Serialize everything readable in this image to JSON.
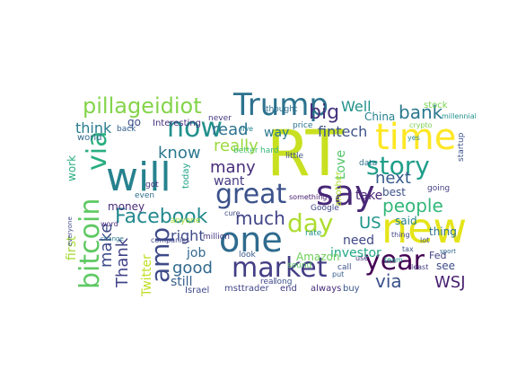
{
  "wordcloud": {
    "words": [
      {
        "text": "RT",
        "color": "#c8e020"
      },
      {
        "text": "new",
        "color": "#e5e419"
      },
      {
        "text": "will",
        "color": "#26828e"
      },
      {
        "text": "one",
        "color": "#2f6b8e"
      },
      {
        "text": "market",
        "color": "#433e85"
      },
      {
        "text": "great",
        "color": "#3b528b"
      },
      {
        "text": "say",
        "color": "#482878"
      },
      {
        "text": "Trump",
        "color": "#2c728e"
      },
      {
        "text": "time",
        "color": "#fde725"
      },
      {
        "text": "bitcoin",
        "color": "#5ec962"
      },
      {
        "text": "now",
        "color": "#21918c"
      },
      {
        "text": "amp",
        "color": "#3e4a89"
      },
      {
        "text": "story",
        "color": "#1f9e89"
      },
      {
        "text": "year",
        "color": "#440154"
      },
      {
        "text": "day",
        "color": "#addc30"
      },
      {
        "text": "via",
        "color": "#28ae80"
      },
      {
        "text": "via",
        "color": "#3b528b"
      },
      {
        "text": "pillageidiot",
        "color": "#84d44b"
      },
      {
        "text": "Facebook",
        "color": "#23898e"
      },
      {
        "text": "people",
        "color": "#35b779"
      },
      {
        "text": "big",
        "color": "#46327e"
      },
      {
        "text": "much",
        "color": "#414487"
      },
      {
        "text": "good",
        "color": "#31688e"
      },
      {
        "text": "really",
        "color": "#9bd93c"
      },
      {
        "text": "know",
        "color": "#2a788e"
      },
      {
        "text": "many",
        "color": "#472d7b"
      },
      {
        "text": "next",
        "color": "#365c8d"
      },
      {
        "text": "bank",
        "color": "#2a788e"
      },
      {
        "text": "Thank",
        "color": "#414487"
      },
      {
        "text": "make",
        "color": "#3e4a89"
      },
      {
        "text": "US",
        "color": "#1f958b"
      },
      {
        "text": "WSJ",
        "color": "#481f70"
      },
      {
        "text": "read",
        "color": "#2c728e"
      },
      {
        "text": "Well",
        "color": "#21918c"
      },
      {
        "text": "fintech",
        "color": "#3b528b"
      },
      {
        "text": "think",
        "color": "#287c8e"
      },
      {
        "text": "right",
        "color": "#3e4a89"
      },
      {
        "text": "investor",
        "color": "#22a785"
      },
      {
        "text": "want",
        "color": "#443983"
      },
      {
        "text": "Twitter",
        "color": "#c0df25"
      },
      {
        "text": "first",
        "color": "#a5db36"
      },
      {
        "text": "job",
        "color": "#31688e"
      },
      {
        "text": "still",
        "color": "#355f8d"
      },
      {
        "text": "need",
        "color": "#404688"
      },
      {
        "text": "take",
        "color": "#482475"
      },
      {
        "text": "Love",
        "color": "#52c569"
      },
      {
        "text": "way",
        "color": "#2a788e"
      },
      {
        "text": "best",
        "color": "#3b528b"
      },
      {
        "text": "said",
        "color": "#26828e"
      },
      {
        "text": "Amazon",
        "color": "#6ece58"
      },
      {
        "text": "money",
        "color": "#472c7a"
      },
      {
        "text": "see",
        "color": "#3e4c8a"
      },
      {
        "text": "work",
        "color": "#29af7f"
      },
      {
        "text": "China",
        "color": "#26828e"
      },
      {
        "text": "thing",
        "color": "#2d708e"
      },
      {
        "text": "Fed",
        "color": "#423f85"
      },
      {
        "text": "go",
        "color": "#3c4f8a"
      },
      {
        "text": "Interesting",
        "color": "#46307e"
      },
      {
        "text": "world",
        "color": "#31688e"
      },
      {
        "text": "today",
        "color": "#1fa187"
      },
      {
        "text": "Israel",
        "color": "#3e4a89"
      },
      {
        "text": "msttrader",
        "color": "#404688"
      },
      {
        "text": "end",
        "color": "#433e85"
      },
      {
        "text": "always",
        "color": "#472d7b"
      },
      {
        "text": "buy",
        "color": "#39568c"
      },
      {
        "text": "thought",
        "color": "#2d708e"
      },
      {
        "text": "stock",
        "color": "#7ad151"
      },
      {
        "text": "price",
        "color": "#2c728e"
      },
      {
        "text": "real",
        "color": "#3f4788"
      },
      {
        "text": "long",
        "color": "#3b528b"
      },
      {
        "text": "sound",
        "color": "#5ec962"
      },
      {
        "text": "never",
        "color": "#453781"
      },
      {
        "text": "back",
        "color": "#35608d"
      },
      {
        "text": "even",
        "color": "#2e6f8e"
      },
      {
        "text": "anyone",
        "color": "#a0da39"
      },
      {
        "text": "better",
        "color": "#4ac16d"
      },
      {
        "text": "hard",
        "color": "#35b779"
      },
      {
        "text": "little",
        "color": "#3d4e8a"
      },
      {
        "text": "million",
        "color": "#453882"
      },
      {
        "text": "companies",
        "color": "#404688"
      },
      {
        "text": "call",
        "color": "#3b528b"
      },
      {
        "text": "Google",
        "color": "#3f4788"
      },
      {
        "text": "data",
        "color": "#2d708e"
      },
      {
        "text": "rate",
        "color": "#20928c"
      },
      {
        "text": "look",
        "color": "#38588c"
      },
      {
        "text": "got",
        "color": "#46327e"
      },
      {
        "text": "going",
        "color": "#433e85"
      },
      {
        "text": "millennial",
        "color": "#21918c"
      },
      {
        "text": "startup",
        "color": "#3b528b"
      },
      {
        "text": "live",
        "color": "#26828e"
      },
      {
        "text": "something",
        "color": "#481b6d"
      },
      {
        "text": "another",
        "color": "#addc30"
      },
      {
        "text": "cure",
        "color": "#3e4a89"
      },
      {
        "text": "tax",
        "color": "#3b528b"
      },
      {
        "text": "word",
        "color": "#472d7b"
      },
      {
        "text": "everyone",
        "color": "#3e4a89"
      },
      {
        "text": "sport",
        "color": "#31688e"
      },
      {
        "text": "least",
        "color": "#443983"
      },
      {
        "text": "change",
        "color": "#2a788e"
      },
      {
        "text": "crypto",
        "color": "#7ad151"
      },
      {
        "text": "lot",
        "color": "#3b528b"
      },
      {
        "text": "team",
        "color": "#1f9e89"
      },
      {
        "text": "use",
        "color": "#46327e"
      },
      {
        "text": "put",
        "color": "#355f8d"
      },
      {
        "text": "yes",
        "color": "#23898e"
      },
      {
        "text": "thing",
        "color": "#414487"
      }
    ]
  }
}
